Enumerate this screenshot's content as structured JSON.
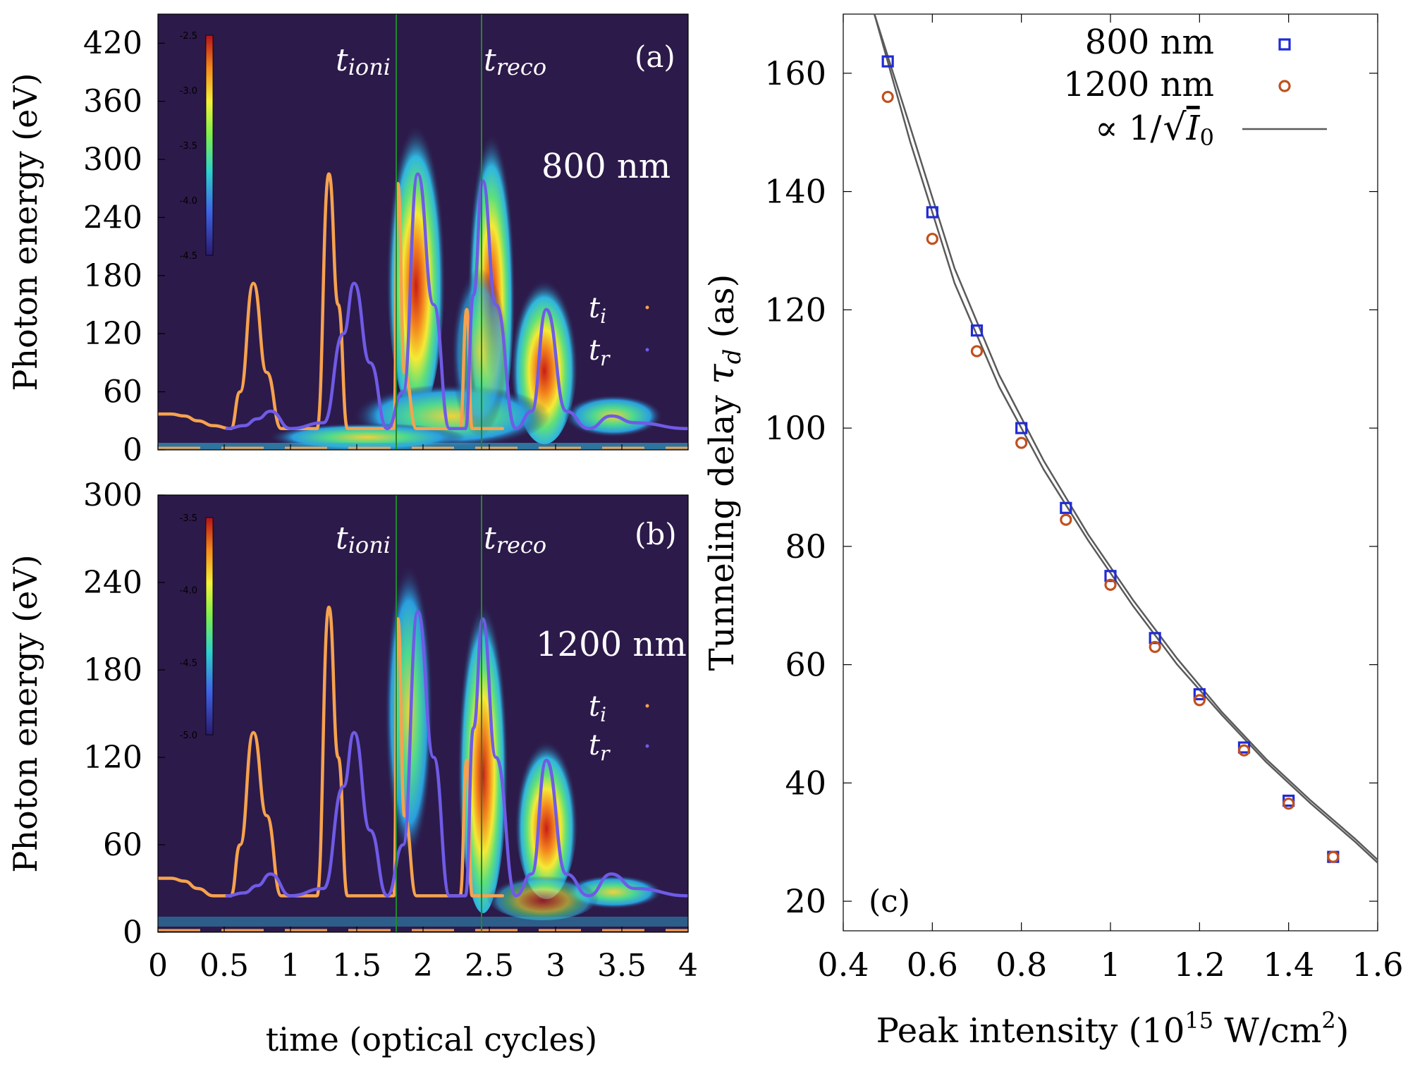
{
  "chart_data": [
    {
      "type": "heatmap",
      "panel_label": "(a)",
      "wavelength_label": "800 nm",
      "xlabel": "",
      "ylabel": "Photon energy (eV)",
      "xlim": [
        0,
        4
      ],
      "ylim": [
        0,
        450
      ],
      "yticks": [
        0,
        60,
        120,
        180,
        240,
        300,
        360,
        420
      ],
      "xticks": [
        0,
        0.5,
        1,
        1.5,
        2,
        2.5,
        3,
        3.5,
        4
      ],
      "colorbar": {
        "ticks": [
          "-2.5",
          "-3.0",
          "-3.5",
          "-4.0",
          "-4.5"
        ],
        "range": [
          -4.5,
          -2.5
        ]
      },
      "markers": [
        {
          "label": "t",
          "sub": "ioni",
          "x": 1.81
        },
        {
          "label": "t",
          "sub": "reco",
          "x": 2.45
        }
      ],
      "legend": [
        {
          "label": "t",
          "sub": "i",
          "color": "#F6A24E"
        },
        {
          "label": "t",
          "sub": "r",
          "color": "#6F5BE6"
        }
      ],
      "series": [
        {
          "name": "t_i",
          "color": "#F6A24E",
          "points": [
            [
              0,
              37
            ],
            [
              0.1,
              37
            ],
            [
              0.2,
              35
            ],
            [
              0.3,
              30
            ],
            [
              0.42,
              25
            ],
            [
              0.55,
              22
            ],
            [
              0.62,
              60
            ],
            [
              0.72,
              172
            ],
            [
              0.82,
              80
            ],
            [
              0.93,
              22
            ],
            [
              1.2,
              22
            ],
            [
              1.29,
              285
            ],
            [
              1.36,
              150
            ],
            [
              1.43,
              22
            ],
            [
              1.78,
              22
            ],
            [
              1.81,
              275
            ],
            [
              1.86,
              80
            ],
            [
              1.95,
              22
            ],
            [
              2.28,
              22
            ],
            [
              2.33,
              145
            ],
            [
              2.37,
              22
            ],
            [
              2.6,
              22
            ]
          ]
        },
        {
          "name": "t_r",
          "color": "#6F5BE6",
          "points": [
            [
              0.52,
              22
            ],
            [
              0.65,
              25
            ],
            [
              0.75,
              32
            ],
            [
              0.85,
              40
            ],
            [
              1.0,
              22
            ],
            [
              1.25,
              28
            ],
            [
              1.4,
              120
            ],
            [
              1.48,
              172
            ],
            [
              1.6,
              90
            ],
            [
              1.73,
              22
            ],
            [
              1.85,
              60
            ],
            [
              1.96,
              285
            ],
            [
              2.08,
              150
            ],
            [
              2.2,
              22
            ],
            [
              2.32,
              22
            ],
            [
              2.38,
              160
            ],
            [
              2.45,
              278
            ],
            [
              2.55,
              150
            ],
            [
              2.7,
              22
            ],
            [
              2.82,
              40
            ],
            [
              2.93,
              145
            ],
            [
              3.08,
              40
            ],
            [
              3.25,
              22
            ],
            [
              3.42,
              35
            ],
            [
              3.6,
              28
            ],
            [
              4.0,
              22
            ]
          ]
        }
      ]
    },
    {
      "type": "heatmap",
      "panel_label": "(b)",
      "wavelength_label": "1200 nm",
      "xlabel": "time (optical cycles)",
      "ylabel": "Photon energy (eV)",
      "xlim": [
        0,
        4
      ],
      "ylim": [
        0,
        300
      ],
      "yticks": [
        0,
        60,
        120,
        180,
        240,
        300
      ],
      "xticks": [
        0,
        0.5,
        1,
        1.5,
        2,
        2.5,
        3,
        3.5,
        4
      ],
      "xticklabels": [
        "0",
        "0.5",
        "1",
        "1.5",
        "2",
        "2.5",
        "3",
        "3.5",
        "4"
      ],
      "colorbar": {
        "ticks": [
          "-3.5",
          "-4.0",
          "-4.5",
          "-5.0"
        ],
        "range": [
          -5.0,
          -3.5
        ]
      },
      "markers": [
        {
          "label": "t",
          "sub": "ioni",
          "x": 1.81
        },
        {
          "label": "t",
          "sub": "reco",
          "x": 2.45
        }
      ],
      "legend": [
        {
          "label": "t",
          "sub": "i",
          "color": "#F6A24E"
        },
        {
          "label": "t",
          "sub": "r",
          "color": "#6F5BE6"
        }
      ],
      "series": [
        {
          "name": "t_i",
          "color": "#F6A24E",
          "points": [
            [
              0,
              37
            ],
            [
              0.1,
              37
            ],
            [
              0.2,
              35
            ],
            [
              0.3,
              30
            ],
            [
              0.42,
              25
            ],
            [
              0.55,
              25
            ],
            [
              0.62,
              60
            ],
            [
              0.72,
              137
            ],
            [
              0.82,
              80
            ],
            [
              0.93,
              25
            ],
            [
              1.2,
              25
            ],
            [
              1.29,
              223
            ],
            [
              1.36,
              120
            ],
            [
              1.43,
              25
            ],
            [
              1.78,
              25
            ],
            [
              1.81,
              215
            ],
            [
              1.86,
              80
            ],
            [
              1.95,
              25
            ],
            [
              2.28,
              25
            ],
            [
              2.33,
              118
            ],
            [
              2.37,
              25
            ],
            [
              2.6,
              25
            ]
          ]
        },
        {
          "name": "t_r",
          "color": "#6F5BE6",
          "points": [
            [
              0.52,
              25
            ],
            [
              0.65,
              27
            ],
            [
              0.75,
              32
            ],
            [
              0.85,
              40
            ],
            [
              1.0,
              25
            ],
            [
              1.25,
              30
            ],
            [
              1.4,
              100
            ],
            [
              1.48,
              137
            ],
            [
              1.6,
              70
            ],
            [
              1.73,
              25
            ],
            [
              1.85,
              60
            ],
            [
              1.96,
              220
            ],
            [
              2.08,
              120
            ],
            [
              2.2,
              25
            ],
            [
              2.32,
              25
            ],
            [
              2.38,
              140
            ],
            [
              2.45,
              215
            ],
            [
              2.55,
              120
            ],
            [
              2.7,
              25
            ],
            [
              2.82,
              40
            ],
            [
              2.93,
              118
            ],
            [
              3.08,
              40
            ],
            [
              3.25,
              25
            ],
            [
              3.42,
              40
            ],
            [
              3.6,
              30
            ],
            [
              4.0,
              25
            ]
          ]
        }
      ]
    },
    {
      "type": "scatter",
      "panel_label": "(c)",
      "xlabel": "Peak intensity (10",
      "xlabel_sup": "15",
      "xlabel_rest": " W/cm",
      "xlabel_sup2": "2",
      "xlabel_end": ")",
      "ylabel": "Tunneling delay ",
      "ylabel_symbol": "τ",
      "ylabel_sub": "d",
      "ylabel_end": " (as)",
      "xlim": [
        0.4,
        1.6
      ],
      "ylim": [
        15,
        170
      ],
      "xticks": [
        0.4,
        0.6,
        0.8,
        1,
        1.2,
        1.4,
        1.6
      ],
      "xticklabels": [
        "0.4",
        "0.6",
        "0.8",
        "1",
        "1.2",
        "1.4",
        "1.6"
      ],
      "yticks": [
        20,
        40,
        60,
        80,
        100,
        120,
        140,
        160
      ],
      "legend_position": "top-right",
      "series": [
        {
          "name": "800 nm",
          "marker": "square",
          "color": "#1F2BD6",
          "x": [
            0.5,
            0.6,
            0.7,
            0.8,
            0.9,
            1.0,
            1.1,
            1.2,
            1.3,
            1.4,
            1.5
          ],
          "y": [
            162,
            136.5,
            116.5,
            100,
            86.5,
            75,
            64.5,
            55,
            46,
            37,
            27.5
          ]
        },
        {
          "name": "1200 nm",
          "marker": "circle",
          "color": "#C0501E",
          "x": [
            0.5,
            0.6,
            0.7,
            0.8,
            0.9,
            1.0,
            1.1,
            1.2,
            1.3,
            1.4,
            1.5
          ],
          "y": [
            156,
            132,
            113,
            97.5,
            84.5,
            73.5,
            63,
            54,
            45.5,
            36.5,
            27.5
          ]
        }
      ],
      "fit": {
        "name": "∝ 1/√I₀",
        "label_prefix": "∝ 1/",
        "label_radicand": "I",
        "label_radicand_sub": "0",
        "color": "#5a5a5a",
        "curves": [
          {
            "x": [
              0.47,
              0.55,
              0.65,
              0.75,
              0.85,
              0.95,
              1.05,
              1.15,
              1.25,
              1.35,
              1.45,
              1.55,
              1.6
            ],
            "y": [
              172,
              148.5,
              124.5,
              107,
              93,
              81,
              70,
              60,
              51.5,
              43.5,
              36.5,
              30,
              26.5
            ]
          },
          {
            "x": [
              0.47,
              0.55,
              0.65,
              0.75,
              0.85,
              0.95,
              1.05,
              1.15,
              1.25,
              1.35,
              1.45,
              1.55,
              1.6
            ],
            "y": [
              174,
              151,
              127,
              109,
              94.5,
              82,
              71,
              61,
              52,
              44,
              37,
              30.5,
              27
            ]
          }
        ]
      }
    }
  ]
}
